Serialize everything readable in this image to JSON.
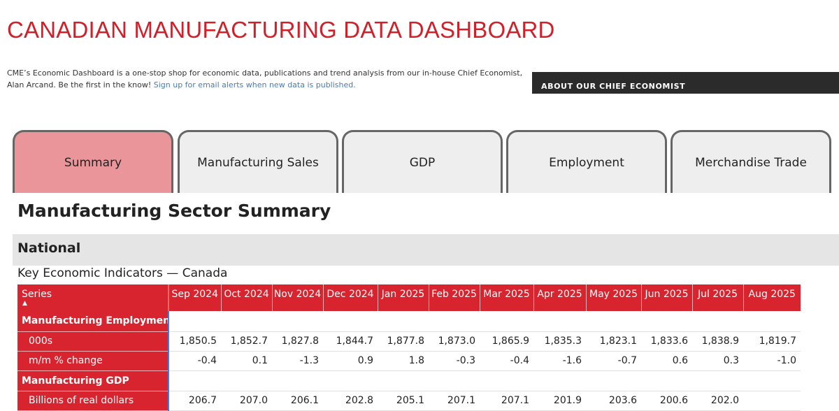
{
  "header": {
    "title": "CANADIAN MANUFACTURING DATA DASHBOARD",
    "intro_text": "CME’s Economic Dashboard is a one-stop shop for economic data, publications and trend analysis from our in-house Chief Economist, Alan Arcand. Be the first in the know! ",
    "signup_link": "Sign up for email alerts when new data is published.",
    "about_button": "ABOUT OUR CHIEF ECONOMIST"
  },
  "tabs": [
    {
      "label": "Summary",
      "active": true
    },
    {
      "label": "Manufacturing Sales",
      "active": false
    },
    {
      "label": "GDP",
      "active": false
    },
    {
      "label": "Employment",
      "active": false
    },
    {
      "label": "Merchandise Trade",
      "active": false
    }
  ],
  "main": {
    "section_title": "Manufacturing Sector Summary",
    "region": "National",
    "table_caption": "Key Economic Indicators — Canada",
    "series_header": "Series",
    "sort_arrow": "▲",
    "months": [
      "Sep 2024",
      "Oct 2024",
      "Nov 2024",
      "Dec 2024",
      "Jan 2025",
      "Feb 2025",
      "Mar 2025",
      "Apr 2025",
      "May 2025",
      "Jun 2025",
      "Jul 2025",
      "Aug 2025"
    ],
    "rows": [
      {
        "type": "group",
        "label": "Manufacturing Employment"
      },
      {
        "type": "row",
        "label": "000s",
        "values": [
          "1,850.5",
          "1,852.7",
          "1,827.8",
          "1,844.7",
          "1,877.8",
          "1,873.0",
          "1,865.9",
          "1,835.3",
          "1,823.1",
          "1,833.6",
          "1,838.9",
          "1,819.7"
        ]
      },
      {
        "type": "row",
        "label": "m/m % change",
        "values": [
          "-0.4",
          "0.1",
          "-1.3",
          "0.9",
          "1.8",
          "-0.3",
          "-0.4",
          "-1.6",
          "-0.7",
          "0.6",
          "0.3",
          "-1.0"
        ]
      },
      {
        "type": "group",
        "label": "Manufacturing GDP"
      },
      {
        "type": "row",
        "label": "Billions of real dollars",
        "values": [
          "206.7",
          "207.0",
          "206.1",
          "202.8",
          "205.1",
          "207.1",
          "207.1",
          "201.9",
          "203.6",
          "200.6",
          "202.0",
          ""
        ]
      }
    ]
  }
}
